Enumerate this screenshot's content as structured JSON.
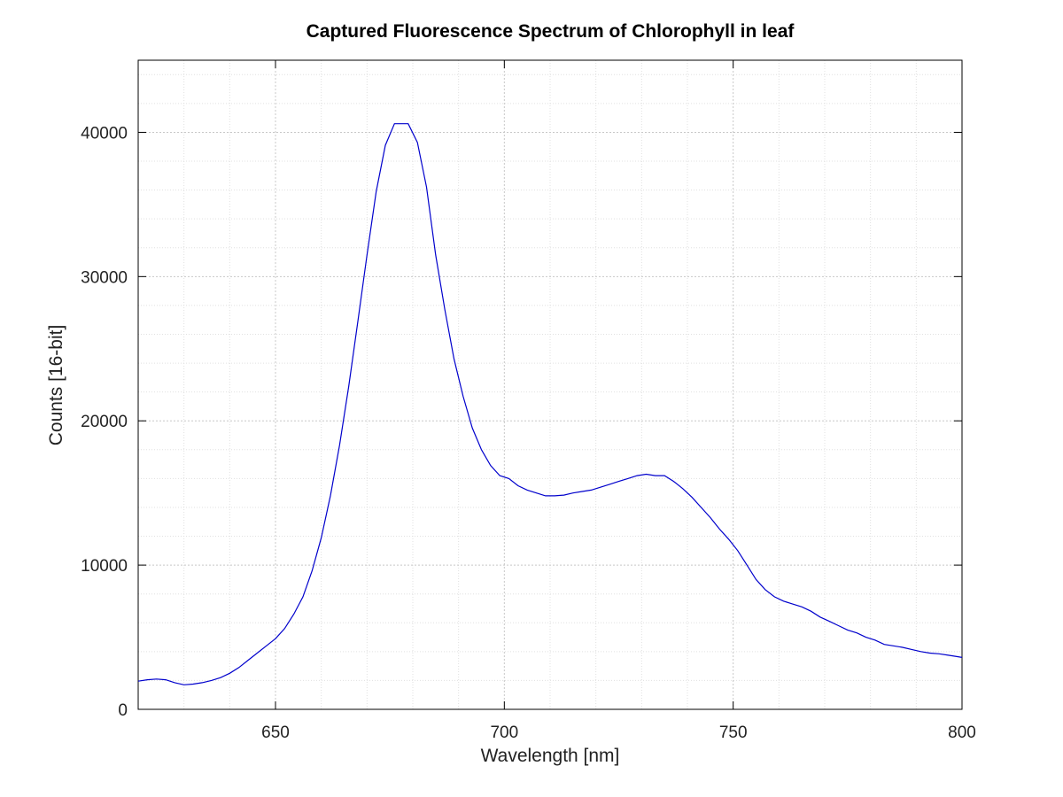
{
  "chart_data": {
    "type": "line",
    "title": "Captured Fluorescence Spectrum of Chlorophyll in leaf",
    "xlabel": "Wavelength [nm]",
    "ylabel": "Counts [16-bit]",
    "xlim": [
      620,
      800
    ],
    "ylim": [
      0,
      45000
    ],
    "xticks": [
      650,
      700,
      750,
      800
    ],
    "yticks": [
      0,
      10000,
      20000,
      30000,
      40000
    ],
    "x_minor_step": 10,
    "y_minor_step": 2000,
    "grid": true,
    "series": [
      {
        "color": "#0000cc",
        "x": [
          620,
          622,
          624,
          626,
          628,
          630,
          632,
          634,
          636,
          638,
          640,
          642,
          644,
          646,
          648,
          650,
          652,
          654,
          656,
          658,
          660,
          662,
          664,
          666,
          668,
          670,
          672,
          674,
          676,
          678,
          679,
          681,
          683,
          685,
          687,
          689,
          691,
          693,
          695,
          697,
          699,
          701,
          703,
          705,
          707,
          709,
          711,
          713,
          715,
          717,
          719,
          721,
          723,
          725,
          727,
          729,
          731,
          733,
          735,
          737,
          739,
          741,
          743,
          745,
          747,
          749,
          751,
          753,
          755,
          757,
          759,
          761,
          763,
          765,
          767,
          769,
          771,
          773,
          775,
          777,
          779,
          781,
          783,
          785,
          787,
          789,
          791,
          793,
          795,
          797,
          799,
          800
        ],
        "y": [
          1950,
          2050,
          2100,
          2050,
          1850,
          1700,
          1750,
          1850,
          2000,
          2200,
          2500,
          2900,
          3400,
          3900,
          4400,
          4900,
          5600,
          6600,
          7800,
          9600,
          11900,
          14800,
          18300,
          22400,
          26900,
          31500,
          35900,
          39100,
          40600,
          40600,
          40600,
          39300,
          36200,
          31500,
          27700,
          24300,
          21700,
          19500,
          18000,
          16900,
          16200,
          16000,
          15500,
          15200,
          15000,
          14800,
          14800,
          14850,
          15000,
          15100,
          15200,
          15400,
          15600,
          15800,
          16000,
          16200,
          16300,
          16200,
          16200,
          15800,
          15300,
          14700,
          14000,
          13300,
          12500,
          11800,
          11000,
          10000,
          9000,
          8300,
          7800,
          7500,
          7300,
          7100,
          6800,
          6400,
          6100,
          5800,
          5500,
          5300,
          5000,
          4800,
          4500,
          4400,
          4300,
          4150,
          4000,
          3900,
          3850,
          3750,
          3650,
          3600
        ]
      }
    ]
  }
}
